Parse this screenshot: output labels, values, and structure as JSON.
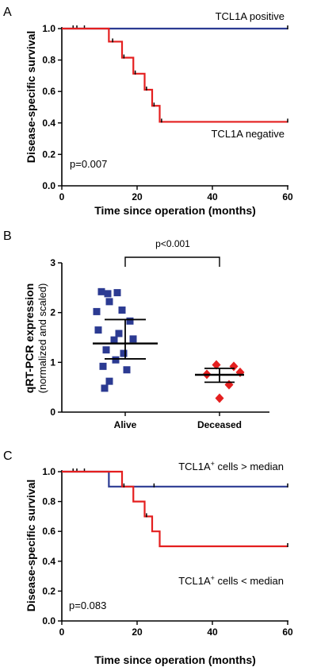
{
  "chart_data": [
    {
      "type": "line",
      "panel": "A",
      "xlabel": "Time since operation (months)",
      "ylabel": "Disease-specific survival",
      "xlim": [
        0,
        60
      ],
      "ylim": [
        0,
        1.0
      ],
      "xticks": [
        "0",
        "20",
        "40",
        "60"
      ],
      "yticks": [
        "0.0",
        "0.2",
        "0.4",
        "0.6",
        "0.8",
        "1.0"
      ],
      "pvalue": "p=0.007",
      "series": [
        {
          "name": "TCL1A positive",
          "color": "#2b3a92",
          "x": [
            0,
            60
          ],
          "y": [
            1.0,
            1.0
          ],
          "censored_x": [
            3,
            4,
            6,
            60
          ]
        },
        {
          "name": "TCL1A negative",
          "color": "#e41f1f",
          "x": [
            0,
            12.5,
            16,
            19,
            22,
            24,
            26,
            60
          ],
          "y": [
            1.0,
            0.917,
            0.815,
            0.713,
            0.611,
            0.509,
            0.407,
            0.407
          ],
          "censored_x": [
            13.5,
            16.5,
            19.5,
            22.5,
            24.5,
            26.5,
            60
          ]
        }
      ]
    },
    {
      "type": "scatter",
      "panel": "B",
      "ylabel": "qRT-PCR expression",
      "ylabel_sub": "(normalized and scaled)",
      "categories": [
        "Alive",
        "Deceased"
      ],
      "ylim": [
        0,
        3
      ],
      "yticks": [
        "0",
        "1",
        "2",
        "3"
      ],
      "pvalue": "p<0.001",
      "series": [
        {
          "name": "Alive",
          "color": "#2b3a92",
          "marker": "square",
          "values": [
            2.42,
            2.38,
            2.4,
            2.22,
            2.05,
            2.02,
            1.83,
            1.65,
            1.58,
            1.47,
            1.45,
            1.25,
            1.18,
            1.05,
            0.92,
            0.85,
            0.62,
            0.48
          ],
          "mean": 1.38,
          "error": [
            1.07,
            1.86
          ]
        },
        {
          "name": "Deceased",
          "color": "#e41f1f",
          "marker": "diamond",
          "values": [
            0.95,
            0.92,
            0.8,
            0.76,
            0.55,
            0.28
          ],
          "mean": 0.75,
          "error": [
            0.6,
            0.88
          ]
        }
      ]
    },
    {
      "type": "line",
      "panel": "C",
      "xlabel": "Time since operation (months)",
      "ylabel": "Disease-specific survival",
      "xlim": [
        0,
        60
      ],
      "ylim": [
        0,
        1.0
      ],
      "xticks": [
        "0",
        "20",
        "40",
        "60"
      ],
      "yticks": [
        "0.0",
        "0.2",
        "0.4",
        "0.6",
        "0.8",
        "1.0"
      ],
      "pvalue": "p=0.083",
      "series": [
        {
          "name": "TCL1A+ cells > median",
          "label_main": "TCL1A",
          "label_sup": "+",
          "label_rest": " cells > median",
          "color": "#2b3a92",
          "x": [
            0,
            12.5,
            60
          ],
          "y": [
            1.0,
            0.9,
            0.9
          ],
          "censored_x": [
            3,
            4,
            6,
            24.5,
            60
          ]
        },
        {
          "name": "TCL1A+ cells < median",
          "label_main": "TCL1A",
          "label_sup": "+",
          "label_rest": " cells < median",
          "color": "#e41f1f",
          "x": [
            0,
            16,
            19,
            22,
            24,
            26,
            60
          ],
          "y": [
            1.0,
            0.9,
            0.8,
            0.7,
            0.6,
            0.5,
            0.5
          ],
          "censored_x": [
            16.5,
            22.5,
            60
          ]
        }
      ]
    }
  ],
  "labels": {
    "panel_a": "A",
    "panel_b": "B",
    "panel_c": "C"
  }
}
